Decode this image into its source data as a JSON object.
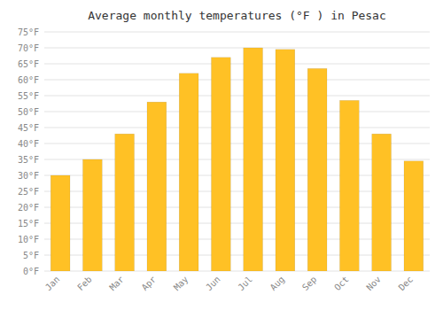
{
  "chart_data": {
    "type": "bar",
    "title": "Average monthly temperatures (°F ) in Pesac",
    "categories": [
      "Jan",
      "Feb",
      "Mar",
      "Apr",
      "May",
      "Jun",
      "Jul",
      "Aug",
      "Sep",
      "Oct",
      "Nov",
      "Dec"
    ],
    "values": [
      30,
      35,
      43,
      53,
      62,
      67,
      70,
      69.5,
      63.5,
      53.5,
      43,
      34.5
    ],
    "color": "#FFC125",
    "ylim": [
      0,
      75
    ],
    "yticks": [
      {
        "value": 0,
        "label": "0°F"
      },
      {
        "value": 5,
        "label": "5°F"
      },
      {
        "value": 10,
        "label": "10°F"
      },
      {
        "value": 15,
        "label": "15°F"
      },
      {
        "value": 20,
        "label": "20°F"
      },
      {
        "value": 25,
        "label": "25°F"
      },
      {
        "value": 30,
        "label": "30°F"
      },
      {
        "value": 35,
        "label": "35°F"
      },
      {
        "value": 40,
        "label": "40°F"
      },
      {
        "value": 45,
        "label": "45°F"
      },
      {
        "value": 50,
        "label": "50°F"
      },
      {
        "value": 55,
        "label": "55°F"
      },
      {
        "value": 60,
        "label": "60°F"
      },
      {
        "value": 65,
        "label": "65°F"
      },
      {
        "value": 70,
        "label": "70°F"
      },
      {
        "value": 75,
        "label": "75°F"
      }
    ],
    "grid": true
  }
}
